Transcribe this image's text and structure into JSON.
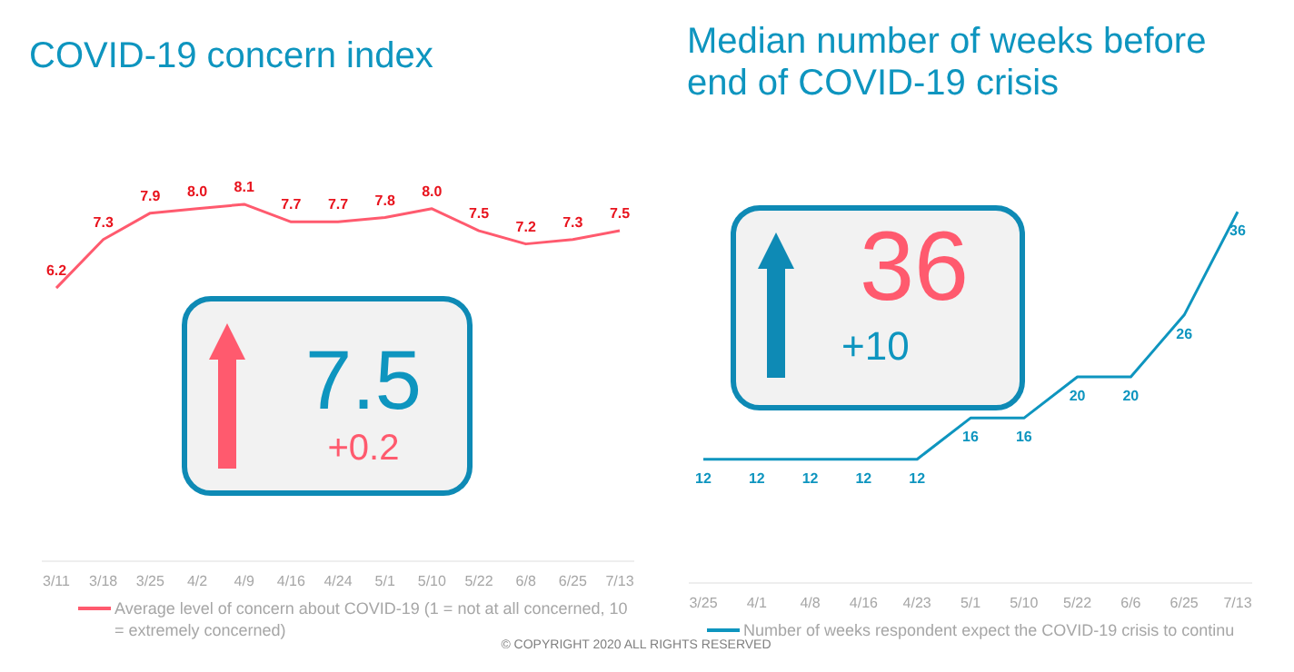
{
  "chart_data": [
    {
      "type": "line",
      "title": "COVID-19 concern index",
      "categories": [
        "3/11",
        "3/18",
        "3/25",
        "4/2",
        "4/9",
        "4/16",
        "4/24",
        "5/1",
        "5/10",
        "5/22",
        "6/8",
        "6/25",
        "7/13"
      ],
      "series": [
        {
          "name": "Average level of concern about COVID-19 (1 = not at all concerned, 10 = extremely concerned)",
          "color": "#ff5a6e",
          "values": [
            6.2,
            7.3,
            7.9,
            8.0,
            8.1,
            7.7,
            7.7,
            7.8,
            8.0,
            7.5,
            7.2,
            7.3,
            7.5
          ],
          "value_labels": [
            "6.2",
            "7.3",
            "7.9",
            "8.0",
            "8.1",
            "7.7",
            "7.7",
            "7.8",
            "8.0",
            "7.5",
            "7.2",
            "7.3",
            "7.5"
          ]
        }
      ],
      "legend": "bottom",
      "marker": "none",
      "tick_labels": "x",
      "grid": false,
      "annotations": [
        "7.5",
        "+0.2"
      ]
    },
    {
      "type": "line",
      "title": "Median number of weeks before end of COVID-19 crisis",
      "categories": [
        "3/25",
        "4/1",
        "4/8",
        "4/16",
        "4/23",
        "5/1",
        "5/10",
        "5/22",
        "6/6",
        "6/25",
        "7/13"
      ],
      "series": [
        {
          "name": "Number of weeks respondent expect the COVID-19 crisis to continu",
          "color": "#0e95bf",
          "values": [
            12,
            12,
            12,
            12,
            12,
            16,
            16,
            20,
            20,
            26,
            36
          ]
        }
      ],
      "data_labels": true,
      "legend": "bottom",
      "marker": "none",
      "tick_labels": "x",
      "grid": false,
      "annotations": [
        "36",
        "+10",
        "© COPYRIGHT 2020 ALL RIGHTS RESERVED"
      ]
    }
  ]
}
